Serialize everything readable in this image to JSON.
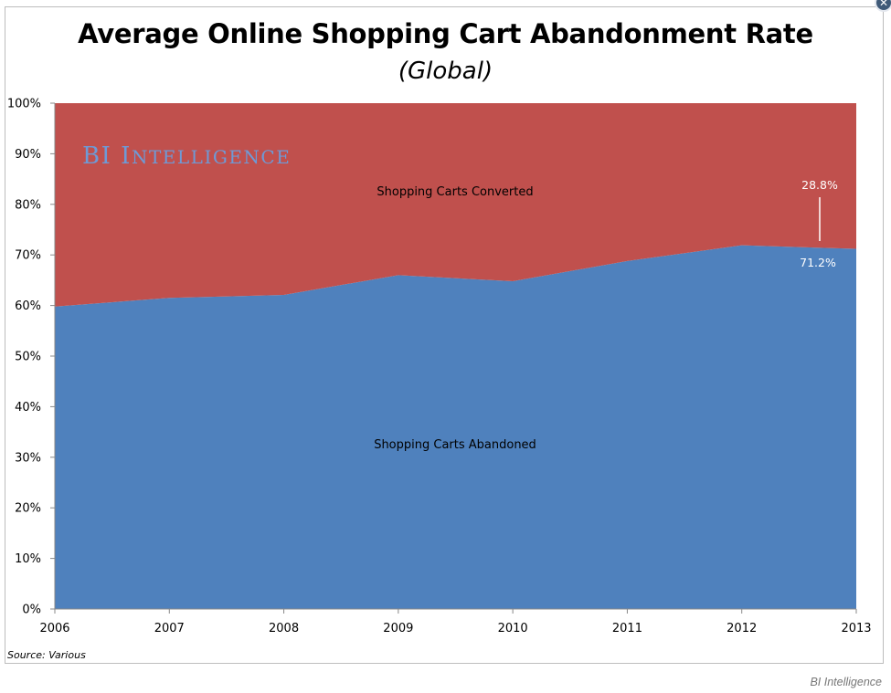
{
  "header": {
    "title": "Average Online Shopping Cart Abandonment Rate",
    "subtitle": "(Global)"
  },
  "footer": {
    "source": "Source: Various",
    "credit": "BI Intelligence"
  },
  "controls": {
    "close_icon": "close-icon"
  },
  "chart_data": {
    "type": "area",
    "stacked": true,
    "title": "Average Online Shopping Cart Abandonment Rate",
    "subtitle": "(Global)",
    "x": [
      "2006",
      "2007",
      "2008",
      "2009",
      "2010",
      "2011",
      "2012",
      "2013"
    ],
    "series": [
      {
        "name": "Shopping Carts Abandoned",
        "values": [
          59.8,
          61.5,
          62.1,
          66.0,
          64.8,
          68.8,
          71.9,
          71.2
        ],
        "color": "#4f81bd"
      },
      {
        "name": "Shopping Carts Converted",
        "values": [
          40.2,
          38.5,
          37.9,
          34.0,
          35.2,
          31.2,
          28.1,
          28.8
        ],
        "color": "#c0504d"
      }
    ],
    "yticks": [
      "0%",
      "10%",
      "20%",
      "30%",
      "40%",
      "50%",
      "60%",
      "70%",
      "80%",
      "90%",
      "100%"
    ],
    "ylim": [
      0,
      100
    ],
    "annotations": {
      "abandoned_last": "71.2%",
      "converted_last": "28.8%"
    },
    "watermark": "BI Intelligence",
    "grid": false,
    "legend": "none"
  }
}
